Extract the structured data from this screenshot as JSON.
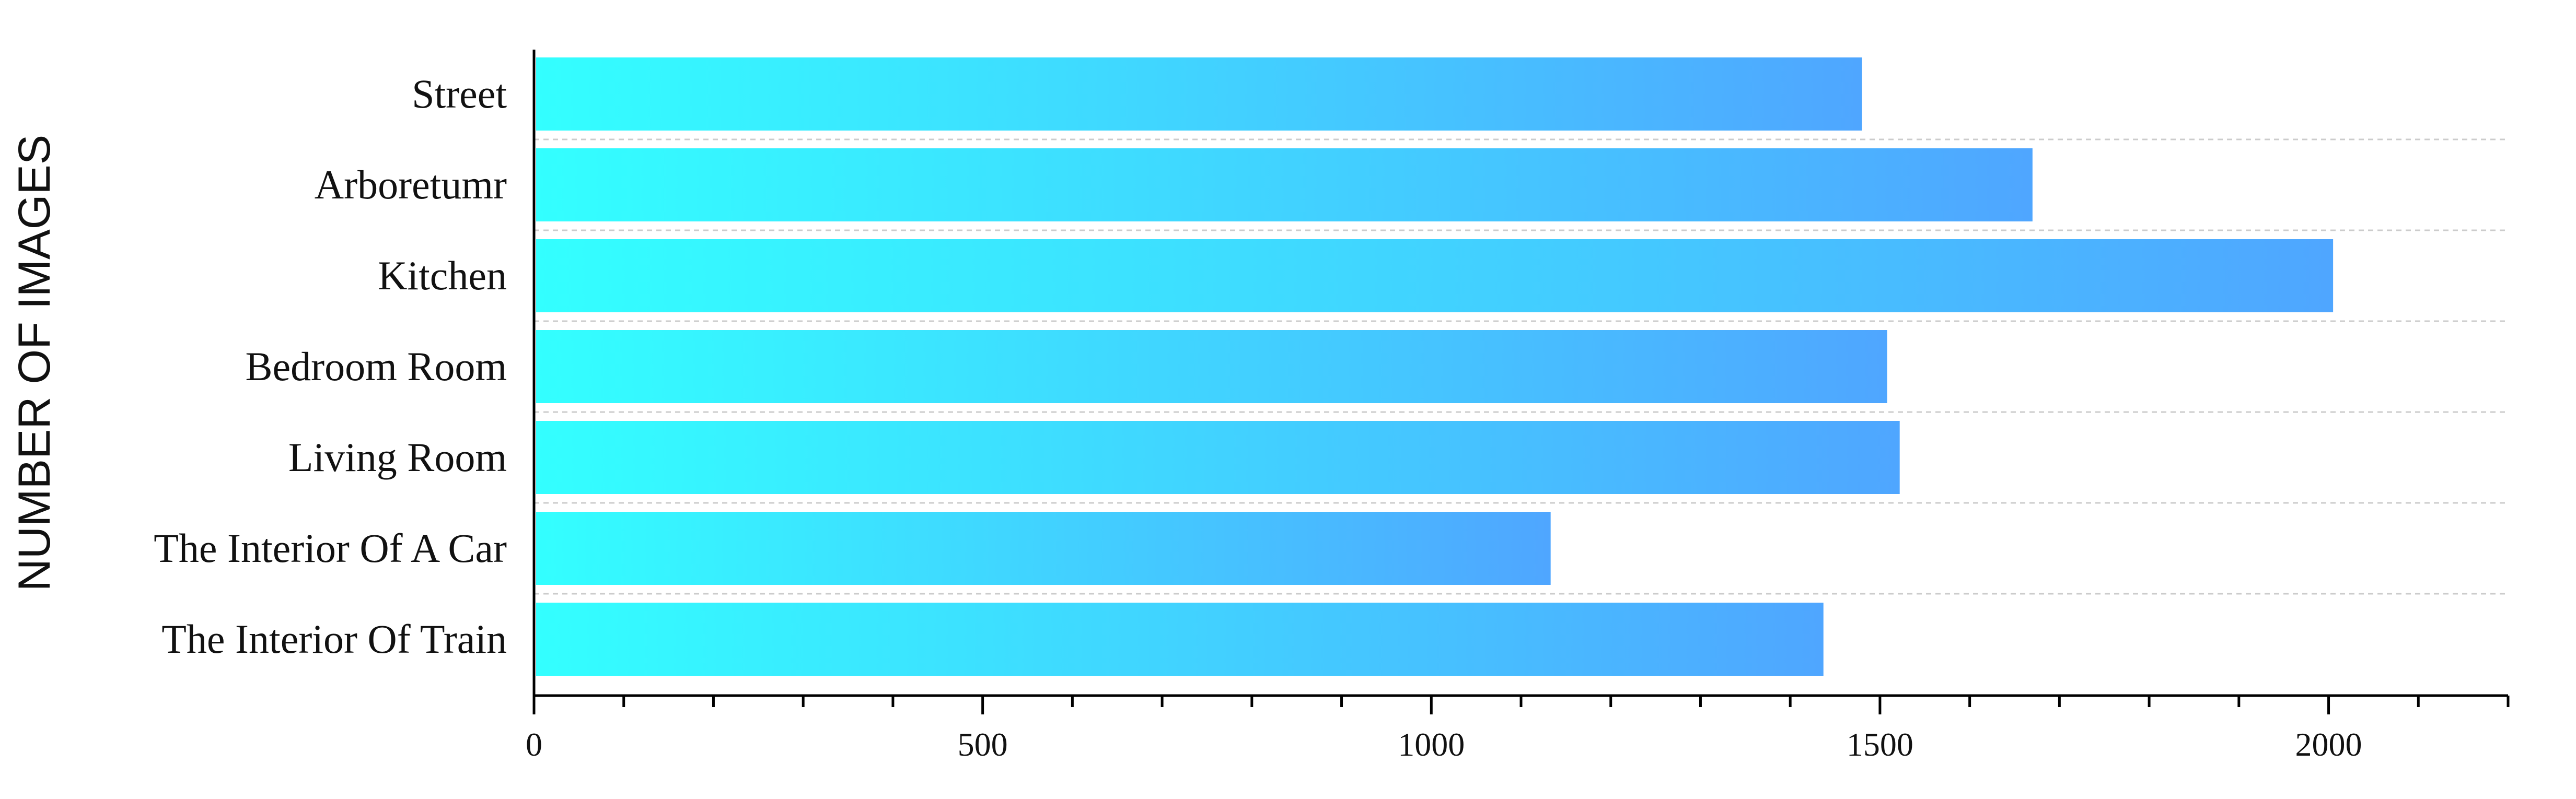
{
  "chart_data": {
    "type": "bar",
    "orientation": "horizontal",
    "ylabel": "NUMBER OF IMAGES",
    "xlabel": "",
    "title": "",
    "categories": [
      "Street",
      "Arboretumr",
      "Kitchen",
      "Bedroom Room",
      "Living Room",
      "The Interior Of A Car",
      "The Interior Of Train"
    ],
    "values": [
      1480,
      1670,
      2005,
      1508,
      1522,
      1133,
      1437
    ],
    "xlim": [
      0,
      2200
    ],
    "xticks": [
      0,
      500,
      1000,
      1500,
      2000
    ],
    "grid": "horizontal dashed",
    "legend": "none",
    "colors": {
      "bar_start": "#33ffff",
      "bar_end": "#4fa6ff",
      "grid": "#cccccc",
      "axis": "#000000"
    }
  }
}
